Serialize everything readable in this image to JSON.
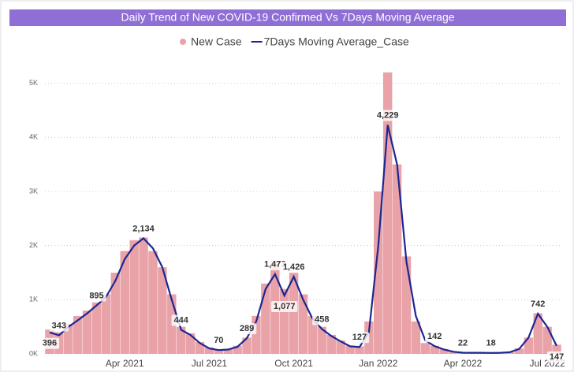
{
  "chart_data": {
    "type": "bar-line",
    "title": "Daily Trend of New COVID-19 Confirmed Vs 7Days Moving Average",
    "categories": [
      null,
      null,
      null,
      null,
      null,
      null,
      null,
      null,
      "Apr 2021",
      null,
      null,
      null,
      null,
      null,
      null,
      null,
      null,
      "Jul 2021",
      null,
      null,
      null,
      null,
      null,
      null,
      null,
      null,
      "Oct 2021",
      null,
      null,
      null,
      null,
      null,
      null,
      null,
      null,
      "Jan 2022",
      null,
      null,
      null,
      null,
      null,
      null,
      null,
      null,
      "Apr 2022",
      null,
      null,
      null,
      null,
      null,
      null,
      null,
      null,
      "Jul 2022",
      null
    ],
    "series": [
      {
        "name": "New Case",
        "type": "bar",
        "color": "#e8a2a8",
        "values": [
          450,
          400,
          550,
          700,
          800,
          950,
          1100,
          1500,
          1900,
          2100,
          2150,
          1900,
          1600,
          1100,
          500,
          380,
          220,
          120,
          80,
          90,
          150,
          300,
          700,
          1300,
          1700,
          1200,
          1500,
          1100,
          700,
          500,
          350,
          250,
          150,
          140,
          600,
          3000,
          5200,
          3500,
          1800,
          600,
          200,
          150,
          90,
          40,
          25,
          20,
          20,
          20,
          20,
          30,
          100,
          300,
          750,
          500,
          170
        ]
      },
      {
        "name": "7Days Moving Average_Case",
        "type": "line",
        "color": "#1c2791",
        "values": [
          396,
          343,
          500,
          620,
          750,
          895,
          1050,
          1350,
          1750,
          2000,
          2134,
          1950,
          1600,
          1000,
          444,
          350,
          200,
          100,
          70,
          80,
          130,
          289,
          600,
          1200,
          1473,
          1077,
          1426,
          1000,
          650,
          458,
          330,
          230,
          140,
          127,
          400,
          2000,
          4229,
          3500,
          1700,
          700,
          250,
          142,
          80,
          40,
          22,
          20,
          20,
          18,
          20,
          30,
          90,
          300,
          742,
          500,
          147
        ],
        "value_labels": [
          "396",
          "343",
          null,
          null,
          null,
          "895",
          null,
          null,
          null,
          null,
          "2,134",
          null,
          null,
          null,
          "444",
          null,
          null,
          null,
          "70",
          null,
          null,
          "289",
          null,
          null,
          "1,473",
          "1,077",
          "1,426",
          null,
          null,
          "458",
          null,
          null,
          null,
          "127",
          null,
          null,
          "4,229",
          null,
          null,
          null,
          null,
          "142",
          null,
          null,
          "22",
          null,
          null,
          "18",
          null,
          null,
          null,
          null,
          "742",
          null,
          "147"
        ]
      }
    ],
    "ylim": [
      0,
      5300
    ],
    "yticks": [
      {
        "value": 0,
        "label": "0K"
      },
      {
        "value": 1000,
        "label": "1K"
      },
      {
        "value": 2000,
        "label": "2K"
      },
      {
        "value": 3000,
        "label": "3K"
      },
      {
        "value": 4000,
        "label": "4K"
      },
      {
        "value": 5000,
        "label": "5K"
      }
    ],
    "grid": true
  }
}
